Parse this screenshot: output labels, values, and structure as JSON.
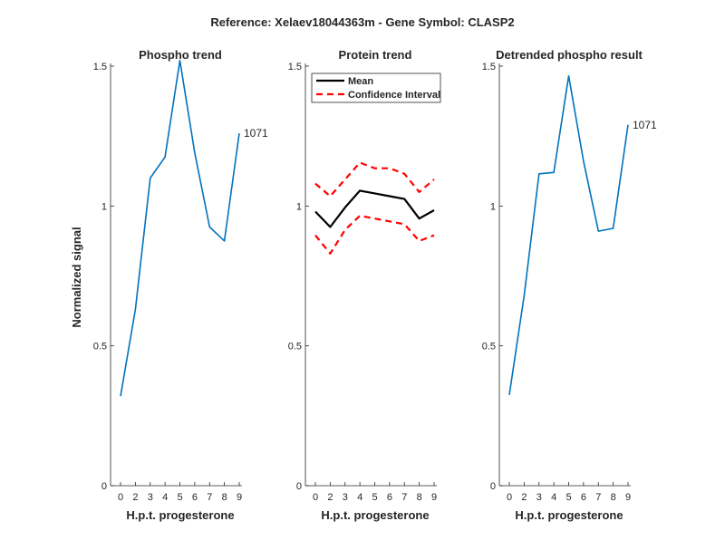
{
  "figure": {
    "suptitle": "Reference:  Xelaev18044363m - Gene Symbol:  CLASP2"
  },
  "colors": {
    "series_blue": "#0072bd",
    "mean": "#000000",
    "ci": "#ff0000",
    "axis": "#262626"
  },
  "chart_data": [
    {
      "type": "line",
      "title": "Phospho trend",
      "xlabel": "H.p.t. progesterone",
      "ylabel": "Normalized signal",
      "x_ticks": [
        "0",
        "2",
        "3",
        "4",
        "5",
        "6",
        "7",
        "8",
        "9"
      ],
      "y_ticks": [
        "0",
        "0.5",
        "1",
        "1.5"
      ],
      "ylim": [
        0,
        1.5
      ],
      "series": [
        {
          "values": [
            0.32,
            0.63,
            1.1,
            1.175,
            1.52,
            1.19,
            0.925,
            0.875,
            1.26
          ]
        }
      ],
      "annotation": "1071"
    },
    {
      "type": "line",
      "title": "Protein trend",
      "xlabel": "H.p.t. progesterone",
      "ylabel": "",
      "x_ticks": [
        "0",
        "2",
        "3",
        "4",
        "5",
        "6",
        "7",
        "8",
        "9"
      ],
      "y_ticks": [
        "0",
        "0.5",
        "1",
        "1.5"
      ],
      "ylim": [
        0,
        1.5
      ],
      "legend": {
        "location": "top-left",
        "entries": [
          "Mean",
          "Confidence Interval"
        ]
      },
      "series": [
        {
          "name": "Mean",
          "values": [
            0.98,
            0.925,
            0.995,
            1.055,
            1.045,
            1.035,
            1.025,
            0.955,
            0.985
          ]
        },
        {
          "name": "Confidence Interval",
          "values": [
            1.08,
            1.035,
            1.095,
            1.155,
            1.135,
            1.135,
            1.115,
            1.05,
            1.095
          ]
        },
        {
          "name": "Confidence Interval",
          "values": [
            0.895,
            0.83,
            0.915,
            0.965,
            0.955,
            0.945,
            0.935,
            0.875,
            0.895
          ]
        }
      ]
    },
    {
      "type": "line",
      "title": "Detrended phospho result",
      "xlabel": "H.p.t. progesterone",
      "ylabel": "",
      "x_ticks": [
        "0",
        "2",
        "3",
        "4",
        "5",
        "6",
        "7",
        "8",
        "9"
      ],
      "y_ticks": [
        "0",
        "0.5",
        "1",
        "1.5"
      ],
      "ylim": [
        0,
        1.5
      ],
      "series": [
        {
          "values": [
            0.325,
            0.68,
            1.115,
            1.12,
            1.465,
            1.16,
            0.91,
            0.92,
            1.29
          ]
        }
      ],
      "annotation": "1071"
    }
  ]
}
